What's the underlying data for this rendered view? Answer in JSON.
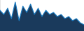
{
  "chart_data": {
    "type": "area",
    "values": [
      8,
      6,
      9,
      4,
      12,
      3,
      10,
      7,
      11,
      6,
      9,
      5,
      8,
      6,
      7,
      5,
      6,
      4,
      5,
      3,
      4,
      2,
      1
    ],
    "colors": [
      "#1a7abf",
      "#1a3a5c"
    ],
    "ylim": [
      -2,
      13
    ],
    "grid": false,
    "legend": false,
    "tick_labels": false
  }
}
